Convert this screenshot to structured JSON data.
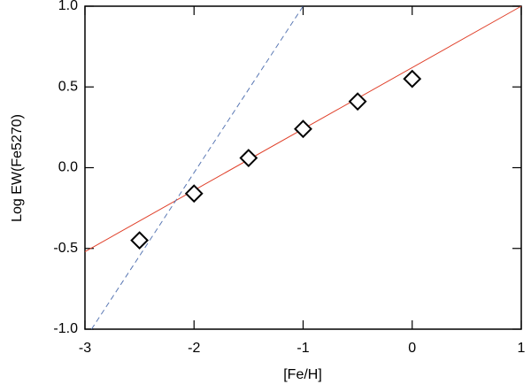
{
  "chart_data": {
    "type": "scatter",
    "xlabel": "[Fe/H]",
    "ylabel": "Log EW(Fe5270)",
    "x": [
      -2.5,
      -2.0,
      -1.5,
      -1.0,
      -0.5,
      0.0
    ],
    "values": [
      -0.45,
      -0.16,
      0.06,
      0.24,
      0.41,
      0.55
    ],
    "color": "#000000",
    "lines": [
      {
        "x": [
          -3,
          1
        ],
        "values": [
          -0.52,
          1.0
        ],
        "color": "#e0402a",
        "dashed": false
      },
      {
        "x": [
          -2.94,
          -1.0
        ],
        "values": [
          -1.0,
          1.0
        ],
        "color": "#5a78b4",
        "dashed": true
      }
    ],
    "xlim": [
      -3,
      1
    ],
    "xticks": [
      -3,
      -2,
      -1,
      0,
      1
    ],
    "ylim": [
      -1.0,
      1.0
    ],
    "yticks": [
      {
        "value": -1.0,
        "label": "-1.0"
      },
      {
        "value": -0.5,
        "label": "-0.5"
      },
      {
        "value": 0.0,
        "label": "0.0"
      },
      {
        "value": 0.5,
        "label": "0.5"
      },
      {
        "value": 1.0,
        "label": "1.0"
      }
    ]
  }
}
